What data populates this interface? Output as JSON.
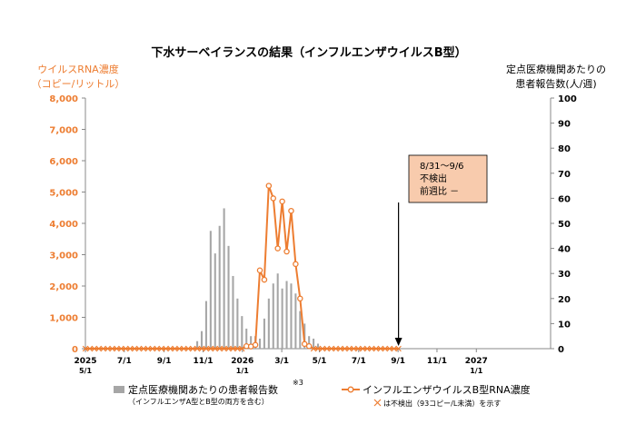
{
  "chart_data": {
    "type": "bar+line",
    "title": "下水サーベイランスの結果（インフルエンザウイルスB型）",
    "left_axis": {
      "label_line1": "ウイルスRNA濃度",
      "label_line2": "（コピー/リットル）",
      "ylim": [
        0,
        8000
      ],
      "ticks": [
        "0",
        "1,000",
        "2,000",
        "3,000",
        "4,000",
        "5,000",
        "6,000",
        "7,000",
        "8,000"
      ],
      "tick_values": [
        0,
        1000,
        2000,
        3000,
        4000,
        5000,
        6000,
        7000,
        8000
      ]
    },
    "right_axis": {
      "label_line1": "定点医療機関あたりの",
      "label_line2": "患者報告数(人/週)",
      "ylim": [
        0,
        100
      ],
      "ticks": [
        "0",
        "10",
        "20",
        "30",
        "40",
        "50",
        "60",
        "70",
        "80",
        "90",
        "100"
      ],
      "tick_values": [
        0,
        10,
        20,
        30,
        40,
        50,
        60,
        70,
        80,
        90,
        100
      ]
    },
    "x_axis": {
      "start_week": 0,
      "end_week": 104,
      "ticks": [
        {
          "week": 0,
          "line1": "2025",
          "line2": "5/1"
        },
        {
          "week": 8.7,
          "line1": "7/1",
          "line2": ""
        },
        {
          "week": 17.6,
          "line1": "9/1",
          "line2": ""
        },
        {
          "week": 26.3,
          "line1": "11/1",
          "line2": ""
        },
        {
          "week": 35.1,
          "line1": "2026",
          "line2": "1/1"
        },
        {
          "week": 43.9,
          "line1": "3/1",
          "line2": ""
        },
        {
          "week": 52.3,
          "line1": "5/1",
          "line2": ""
        },
        {
          "week": 61.1,
          "line1": "7/1",
          "line2": ""
        },
        {
          "week": 69.9,
          "line1": "9/1",
          "line2": ""
        },
        {
          "week": 78.6,
          "line1": "11/1",
          "line2": ""
        },
        {
          "week": 87.4,
          "line1": "2027",
          "line2": "1/1"
        }
      ]
    },
    "bars": {
      "name": "定点医療機関あたりの患者報告数",
      "note": "※3",
      "sub_note": "（インフルエンザA型とB型の両方を含む）",
      "color": "#a6a6a6",
      "weeks": [
        25,
        26,
        27,
        28,
        29,
        30,
        31,
        32,
        33,
        34,
        35,
        36,
        37,
        38,
        39,
        40,
        41,
        42,
        43,
        44,
        45,
        46,
        47,
        48,
        49,
        50,
        51,
        52
      ],
      "values": [
        3,
        7,
        19,
        47,
        38,
        49,
        56,
        41,
        29,
        20,
        13,
        8,
        5,
        5,
        4,
        12,
        20,
        26,
        30,
        24,
        27,
        26,
        22,
        15,
        10,
        5,
        4,
        2
      ]
    },
    "line": {
      "name": "インフルエンザウイルスB型RNA濃度",
      "color": "#ed7d31",
      "not_detected_note": "は不検出（93コピー/L未満）を示す",
      "weeks": [
        0,
        1,
        2,
        3,
        4,
        5,
        6,
        7,
        8,
        9,
        10,
        11,
        12,
        13,
        14,
        15,
        16,
        17,
        18,
        19,
        20,
        21,
        22,
        23,
        24,
        25,
        26,
        27,
        28,
        29,
        30,
        31,
        32,
        33,
        34,
        35,
        36,
        37,
        38,
        39,
        40,
        41,
        42,
        43,
        44,
        45,
        46,
        47,
        48,
        49,
        50,
        51,
        52,
        53,
        54,
        55,
        56,
        57,
        58,
        59,
        60,
        61,
        62,
        63,
        64,
        65,
        66,
        67,
        68,
        69,
        70
      ],
      "values": [
        0,
        0,
        0,
        0,
        0,
        0,
        0,
        0,
        0,
        0,
        0,
        0,
        0,
        0,
        0,
        0,
        0,
        0,
        0,
        0,
        0,
        0,
        0,
        0,
        0,
        0,
        0,
        0,
        0,
        0,
        0,
        0,
        0,
        0,
        0,
        0,
        80,
        70,
        120,
        2500,
        2200,
        5200,
        4800,
        3200,
        4700,
        3100,
        4400,
        2700,
        1600,
        150,
        80,
        0,
        0,
        0,
        0,
        0,
        0,
        0,
        0,
        0,
        0,
        0,
        0,
        0,
        0,
        0,
        0,
        0,
        0,
        0,
        0
      ],
      "not_detected": [
        true,
        true,
        true,
        true,
        true,
        true,
        true,
        true,
        true,
        true,
        true,
        true,
        true,
        true,
        true,
        true,
        true,
        true,
        true,
        true,
        true,
        true,
        true,
        true,
        true,
        true,
        true,
        true,
        true,
        true,
        true,
        true,
        true,
        true,
        true,
        true,
        false,
        false,
        false,
        false,
        false,
        false,
        false,
        false,
        false,
        false,
        false,
        false,
        false,
        false,
        false,
        true,
        true,
        true,
        true,
        true,
        true,
        true,
        true,
        true,
        true,
        true,
        true,
        true,
        true,
        true,
        true,
        true,
        true,
        true,
        true
      ]
    },
    "annotation": {
      "lines": [
        "8/31～9/6",
        "不検出",
        "前週比 －"
      ],
      "arrow_week": 70,
      "fill": "#f8cbad"
    },
    "legend_position": "bottom",
    "grid": false
  }
}
